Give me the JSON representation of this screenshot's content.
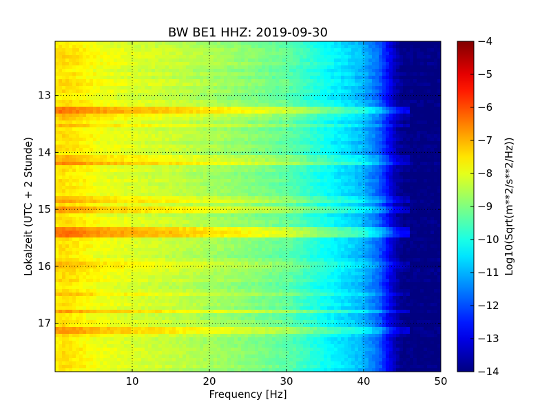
{
  "chart_data": {
    "type": "heatmap",
    "title": "BW BE1 HHZ: 2019-09-30",
    "xlabel": "Frequency [Hz]",
    "ylabel": "Lokalzeit (UTC + 2 Stunde)",
    "xlim": [
      0,
      50
    ],
    "ylim": [
      12.05,
      17.85
    ],
    "y_inverted": true,
    "x_ticks": [
      10,
      20,
      30,
      40,
      50
    ],
    "y_ticks": [
      13,
      14,
      15,
      16,
      17
    ],
    "grid": true,
    "colormap": "jet",
    "colorbar": {
      "label": "Log10(Sqrt(m**2/s**2/Hz))",
      "range": [
        -14,
        -4
      ],
      "ticks": [
        -4,
        -5,
        -6,
        -7,
        -8,
        -9,
        -10,
        -11,
        -12,
        -13,
        -14
      ]
    },
    "spectrum_profile": {
      "frequency_hz": [
        0,
        1,
        3,
        6,
        10,
        15,
        20,
        25,
        30,
        33,
        36,
        38,
        40,
        42,
        44,
        45,
        47,
        50
      ],
      "log_amplitude": [
        -7.6,
        -7.4,
        -7.6,
        -7.9,
        -8.1,
        -8.3,
        -8.6,
        -8.9,
        -9.3,
        -9.8,
        -10.3,
        -10.6,
        -11.0,
        -11.8,
        -13.4,
        -13.9,
        -14.0,
        -14.0
      ]
    },
    "noise_bands": [
      {
        "time": 13.27,
        "strength": 0.8
      },
      {
        "time": 13.37,
        "strength": 0.3
      },
      {
        "time": 13.52,
        "strength": 0.4
      },
      {
        "time": 14.1,
        "strength": 0.35
      },
      {
        "time": 14.2,
        "strength": 0.5
      },
      {
        "time": 14.82,
        "strength": 0.35
      },
      {
        "time": 15.0,
        "strength": 0.5
      },
      {
        "time": 15.37,
        "strength": 0.75
      },
      {
        "time": 15.45,
        "strength": 0.85
      },
      {
        "time": 15.98,
        "strength": 0.35
      },
      {
        "time": 16.5,
        "strength": 0.35
      },
      {
        "time": 16.8,
        "strength": 0.4
      },
      {
        "time": 17.12,
        "strength": 0.45
      }
    ]
  }
}
